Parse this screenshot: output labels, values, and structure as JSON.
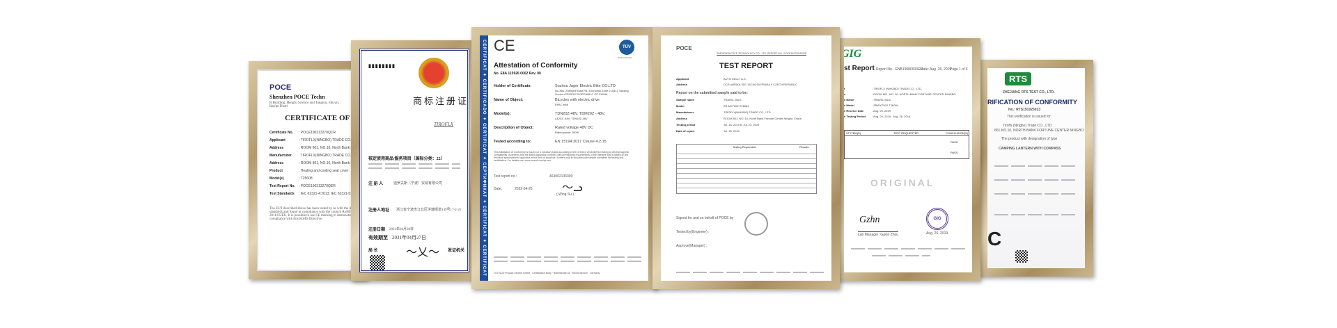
{
  "certificates": {
    "poce_cert": {
      "company": "Shenzhen POCE Techn",
      "company_addr": "B Building, Hengfu Science and Tangtou, Shiyan, Bao'an Distri",
      "logo_text": "POCE",
      "title": "CERTIFICATE OF CONFOR",
      "rows": [
        {
          "label": "Certificate No.",
          "value": ": POCE190313270QCR"
        },
        {
          "label": "Applicant",
          "value": ": TIROFLX(NINGBO) TRADE CO., LTD"
        },
        {
          "label": "Address",
          "value": ": ROOM 801, NO.10, North Bank Fortune Cen"
        },
        {
          "label": "Manufacturer",
          "value": ": TIROFLX(NINGBO) TRADE CO., LTD"
        },
        {
          "label": "Address",
          "value": ": ROOM 801, NO.10, North Bank Fortune Cen"
        },
        {
          "label": "Product",
          "value": ": Heating and cooling seat cover"
        },
        {
          "label": "Model(s)",
          "value": ": T25608"
        },
        {
          "label": "Test Report No.",
          "value": ": POCE190313270QER"
        },
        {
          "label": "Test Standards",
          "value": ": IEC 62321-4:2013; IEC 62321-5:2013; IEC 62321-7-1:2015; IEC 62321-8:2017"
        }
      ],
      "note": "The EUT described above has been tested by us with the listed standards and found in compliance with the council RoHS Directive 2011/65/EU. It is possible to use CE marking to demonstrate the compliance with this RoHS Directive."
    },
    "trademark_cert": {
      "header_code": "第 号",
      "title": "商标注册证",
      "mark": "TIROFLX",
      "goods_label": "核定使用商品/服务项目（国际分类：22）",
      "registrant_label": "注 册 人",
      "registrant": "迪罗夫斯（宁波）贸易有限公司",
      "address_label": "注册人地址",
      "address": "浙江省宁波市江北区洪塘街道149号17-2-25",
      "date_label": "注册日期",
      "date": "2021年04月28日",
      "valid_label": "有效期至",
      "valid": "2031年04月27日",
      "director_label": "局 长",
      "issuer_label": "发证机关"
    },
    "ce_cert": {
      "ce_mark": "CE",
      "tuv_logo": "TÜV",
      "tuv_sub": "Product Service",
      "side_band": "CERTIFICAT ✦ CERTIFICADO ✦ CERTIFICAT ✦ СЕРТИФИКАТ ✦ CERTIFICAT ✦ CERTIFICAT",
      "title": "Attestation of Conformity",
      "number": "No. E8A 115926 0002 Rev. 00",
      "rows": [
        {
          "label": "Holder of Certificate:",
          "value": "Suzhou Jager Electric Bike CO.LTD",
          "sub": "No.366, Zhenghe East Rd, Economic Zone 215412 Taicang, Suzhou PEOPLE'S REPUBLIC OF CHINA"
        },
        {
          "label": "Name of Object:",
          "value": "Bicycles with electric drive",
          "sub": "EPAC bike"
        },
        {
          "label": "Model(s):",
          "value": "TDN20Z-48V, TDM20Z - 48V,",
          "sub": "A120Z -48V, TDN16Z-48V"
        },
        {
          "label": "Description of Object:",
          "value": "Rated voltage   48V DC",
          "sub": "Rated power   250W"
        },
        {
          "label": "Tested according to:",
          "value": "EN 15194:2017 Clause 4.2.15",
          "sub": ""
        }
      ],
      "body": "This Attestation of Conformity is issued on a voluntary basis according to the Directive 2014/30/EU relating to electromagnetic compatibility. It confirms that the listed apparatus complies with all essential requirements of the directive and is based on the technical specifications applicable at the time of issuance. It refers only to the particular sample submitted for testing and certification. For details see: www.tuvsud.com/ps-cert",
      "report_label": "Test report no.:",
      "report_no": "463002136300",
      "date_label": "Date,",
      "date": "2022-04-25",
      "signer": "( Wing Su )",
      "footer": "TÜV SÜD Product Service GmbH · Certification Body · Ridlerstraße 65 · 80339 Munich · Germany"
    },
    "test_report": {
      "logo_text": "POCE",
      "header_line": "SHENZHEN POCE TECHNOLOGY CO., LTD.   REPORT NO.: POCE19073011ERR",
      "title": "TEST REPORT",
      "rows": [
        {
          "label": "Applicant",
          "value": "AUTO KELLY A.S."
        },
        {
          "label": "Address",
          "value": "OCELARSKA 35/1 16 190 00 PRAHA 9 CZECH REPUBLIC"
        }
      ],
      "section": "Report on the submitted sample said to be:",
      "rows2": [
        {
          "label": "Sample name",
          "value": "TRAVEL MUG"
        },
        {
          "label": "Model",
          "value": "ZR-MX7002-T26084"
        },
        {
          "label": "Manufacturer",
          "value": "TIROFLX(NINGBO) TRADE CO., LTD"
        },
        {
          "label": "Address",
          "value": "ROOM 801, NO. 10, North Bank Fortune Center Ningbo, China"
        },
        {
          "label": "Testing period",
          "value": "Jul. 16, 2019 to Jul. 23, 2019"
        },
        {
          "label": "Date of report",
          "value": "Jul. 23, 2019"
        }
      ],
      "table_headers": [
        "Testing Requested",
        "Results"
      ],
      "signed_label": "Signed for and on behalf of POCE by",
      "tested_label": "Tested by(Engineer) :",
      "approve_label": "Approve(Manager) :"
    },
    "gig_report": {
      "logo_text": "GIG",
      "title": "st Report",
      "report_no": "Report No.: GNB19080003EN",
      "date": "Date: Aug. 26, 2019",
      "page": "Page 1 of 6",
      "rows": [
        {
          "label": "t",
          "value": ": TIROFLX (NINGBO) TRADE CO., LTD."
        },
        {
          "label": "s",
          "value": ": ROOM 801, NO. 10, NORTH BANK FORTUNE CENTER NINGBO"
        },
        {
          "label": "e Name",
          "value": ": TRAVEL MUG"
        },
        {
          "label": "e Model",
          "value": ": ZRWXT002-T26084"
        },
        {
          "label": "e Receive Date",
          "value": ": Aug. 20, 2019"
        },
        {
          "label": "e Testing Period",
          "value": ": Aug. 20, 2019 - Aug. 26, 2019"
        }
      ],
      "table_headers": [
        "ST ITEM(S)",
        "TEST REQUESTED",
        "CONCLUSION(S)"
      ],
      "table_results": [
        "PASS",
        "PASS"
      ],
      "watermark": "ORIGINAL",
      "sign_label": "Lab Manager: Gavin Zhou",
      "seal_text": "GIG",
      "seal_date": "Aug. 26, 2019"
    },
    "rts_cert": {
      "logo_text": "RTS",
      "company": "ZHEJIANG RTS TEST CO., LTD.",
      "title": "RIFICATION OF CONFORMITY",
      "number": "No.: RTS191025023",
      "issued_for": "This verification is issued for",
      "holder": "Tiroflx (Ningbo) Trade CO., LTD",
      "holder_addr": "801,NO.10, NORTH BANK FORTUNE CENTER NINGBO",
      "product_line": "The product with designation of type",
      "product": "CAMPING LANTERN WITH COMPASS",
      "ce_mark": "C"
    }
  },
  "colors": {
    "frame_gold": "#b9a175",
    "ce_band_blue": "#1f4e9c",
    "gig_green": "#1a8a3a",
    "rts_green": "#1f8a3c",
    "report_navy": "#1a2a6c"
  }
}
